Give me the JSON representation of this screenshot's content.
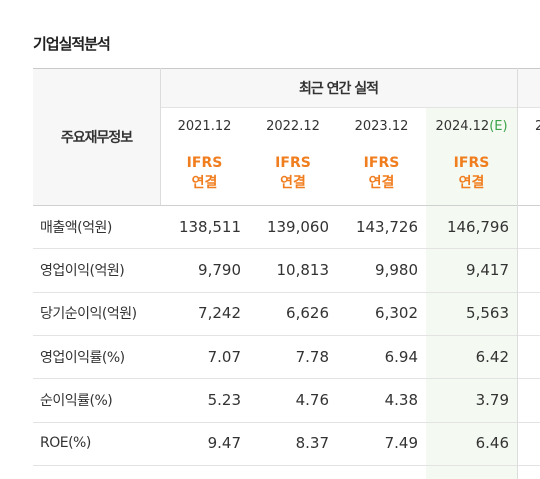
{
  "header": {
    "title": "기업실적분석"
  },
  "table": {
    "corner": "주요재무정보",
    "group": "최근 연간 실적",
    "periods": [
      "2021.12",
      "2022.12",
      "2023.12",
      "2024.12",
      "2"
    ],
    "estimate_mark": "(E)",
    "basis": [
      [
        "IFRS",
        "연결"
      ],
      [
        "IFRS",
        "연결"
      ],
      [
        "IFRS",
        "연결"
      ],
      [
        "IFRS",
        "연결"
      ]
    ],
    "rows": [
      [
        "매출액(억원)",
        "138,511",
        "139,060",
        "143,726",
        "146,796"
      ],
      [
        "영업이익(억원)",
        "9,790",
        "10,813",
        "9,980",
        "9,417"
      ],
      [
        "당기순이익(억원)",
        "7,242",
        "6,626",
        "6,302",
        "5,563"
      ],
      [
        "영업이익률(%)",
        "7.07",
        "7.78",
        "6.94",
        "6.42"
      ],
      [
        "순이익률(%)",
        "5.23",
        "4.76",
        "4.38",
        "3.79"
      ],
      [
        "ROE(%)",
        "9.47",
        "8.37",
        "7.49",
        "6.46"
      ]
    ]
  }
}
